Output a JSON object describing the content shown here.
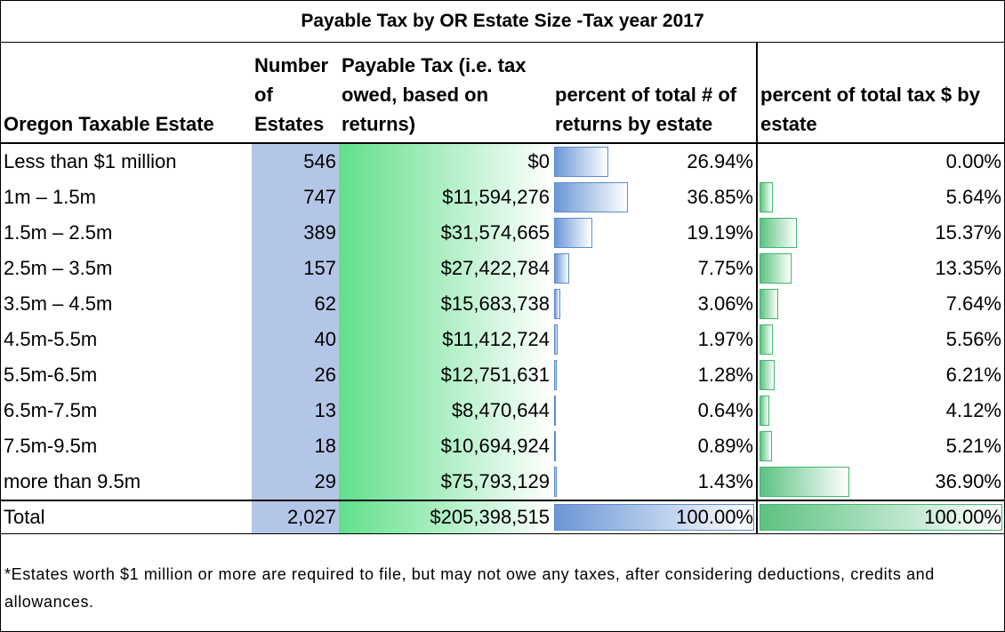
{
  "table": {
    "title": "Payable Tax by OR Estate Size -Tax year 2017",
    "header": [
      "Oregon Taxable Estate",
      "Number of Estates",
      "Payable Tax (i.e. tax owed, based on returns)",
      "percent of total # of returns by estate",
      "percent of total tax $ by estate"
    ],
    "rows": [
      [
        "Less than $1 million",
        "546",
        "$0",
        "26.94%",
        "0.00%"
      ],
      [
        "1m – 1.5m",
        "747",
        "$11,594,276",
        "36.85%",
        "5.64%"
      ],
      [
        "1.5m – 2.5m",
        "389",
        "$31,574,665",
        "19.19%",
        "15.37%"
      ],
      [
        "2.5m – 3.5m",
        "157",
        "$27,422,784",
        "7.75%",
        "13.35%"
      ],
      [
        "3.5m – 4.5m",
        "62",
        "$15,683,738",
        "3.06%",
        "7.64%"
      ],
      [
        "4.5m-5.5m",
        "40",
        "$11,412,724",
        "1.97%",
        "5.56%"
      ],
      [
        "5.5m-6.5m",
        "26",
        "$12,751,631",
        "1.28%",
        "6.21%"
      ],
      [
        "6.5m-7.5m",
        "13",
        "$8,470,644",
        "0.64%",
        "4.12%"
      ],
      [
        "7.5m-9.5m",
        "18",
        "$10,694,924",
        "0.89%",
        "5.21%"
      ],
      [
        "more than 9.5m",
        "29",
        "$75,793,129",
        "1.43%",
        "36.90%"
      ]
    ],
    "total": [
      "Total",
      "2,027",
      "$205,398,515",
      "100.00%",
      "100.00%"
    ]
  },
  "footnote": "*Estates worth $1 million or more are required to file, but may not owe any taxes, after considering deductions, credits and allowances."
}
